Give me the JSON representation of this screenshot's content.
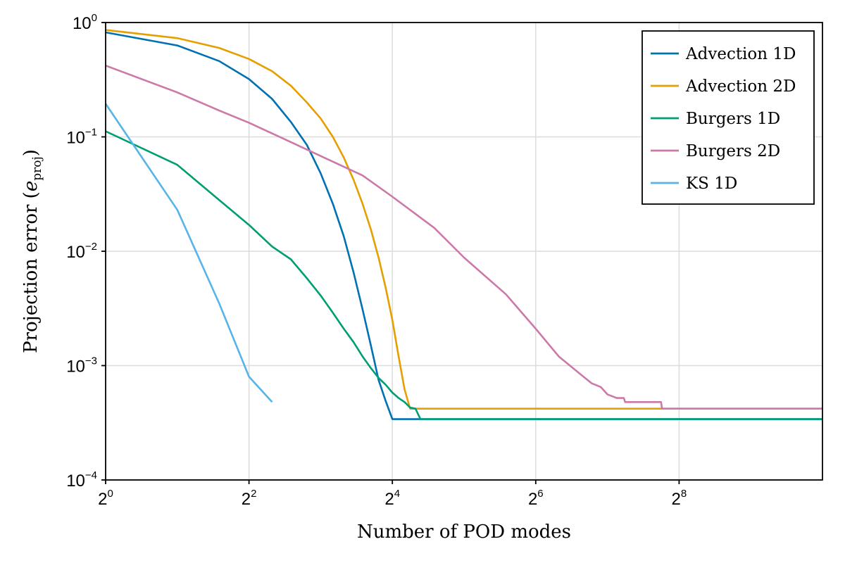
{
  "chart_data": {
    "type": "line",
    "xlabel": "Number of POD modes",
    "ylabel": {
      "main": "Projection error",
      "symbol": "e",
      "subscript": "proj"
    },
    "x_scale": "log2",
    "y_scale": "log10",
    "xlim": [
      1,
      1024
    ],
    "ylim": [
      0.0001,
      1
    ],
    "x_ticks": [
      {
        "value": 1,
        "base": "2",
        "exp": "0"
      },
      {
        "value": 4,
        "base": "2",
        "exp": "2"
      },
      {
        "value": 16,
        "base": "2",
        "exp": "4"
      },
      {
        "value": 64,
        "base": "2",
        "exp": "6"
      },
      {
        "value": 256,
        "base": "2",
        "exp": "8"
      }
    ],
    "y_ticks": [
      {
        "value": 1,
        "base": "10",
        "exp": "0"
      },
      {
        "value": 0.1,
        "base": "10",
        "exp": "−1"
      },
      {
        "value": 0.01,
        "base": "10",
        "exp": "−2"
      },
      {
        "value": 0.001,
        "base": "10",
        "exp": "−3"
      },
      {
        "value": 0.0001,
        "base": "10",
        "exp": "−4"
      }
    ],
    "grid": true,
    "legend_position": "top-right",
    "series": [
      {
        "name": "Advection 1D",
        "color": "#0072b2",
        "points": [
          [
            1,
            0.82
          ],
          [
            2,
            0.63
          ],
          [
            3,
            0.46
          ],
          [
            4,
            0.32
          ],
          [
            5,
            0.215
          ],
          [
            6,
            0.135
          ],
          [
            7,
            0.085
          ],
          [
            8,
            0.048
          ],
          [
            9,
            0.026
          ],
          [
            10,
            0.0135
          ],
          [
            11,
            0.0065
          ],
          [
            12,
            0.0031
          ],
          [
            13,
            0.0015
          ],
          [
            14,
            0.00075
          ],
          [
            15,
            0.00049
          ],
          [
            16,
            0.00034
          ],
          [
            1024,
            0.00034
          ]
        ]
      },
      {
        "name": "Advection 2D",
        "color": "#e69f00",
        "points": [
          [
            1,
            0.86
          ],
          [
            2,
            0.73
          ],
          [
            3,
            0.6
          ],
          [
            4,
            0.48
          ],
          [
            5,
            0.375
          ],
          [
            6,
            0.28
          ],
          [
            7,
            0.2
          ],
          [
            8,
            0.145
          ],
          [
            9,
            0.1
          ],
          [
            10,
            0.066
          ],
          [
            11,
            0.042
          ],
          [
            12,
            0.026
          ],
          [
            13,
            0.0155
          ],
          [
            14,
            0.0088
          ],
          [
            15,
            0.0048
          ],
          [
            16,
            0.0025
          ],
          [
            17,
            0.0012
          ],
          [
            18,
            0.00062
          ],
          [
            19,
            0.00042
          ],
          [
            1024,
            0.00042
          ]
        ]
      },
      {
        "name": "Burgers 1D",
        "color": "#009e73",
        "points": [
          [
            1,
            0.112
          ],
          [
            2,
            0.057
          ],
          [
            3,
            0.028
          ],
          [
            4,
            0.017
          ],
          [
            5,
            0.011
          ],
          [
            6,
            0.0085
          ],
          [
            7,
            0.0058
          ],
          [
            8,
            0.0041
          ],
          [
            9,
            0.0029
          ],
          [
            10,
            0.0021
          ],
          [
            11,
            0.0016
          ],
          [
            12,
            0.0012
          ],
          [
            13,
            0.00095
          ],
          [
            14,
            0.00078
          ],
          [
            15,
            0.00068
          ],
          [
            16,
            0.00058
          ],
          [
            17,
            0.00052
          ],
          [
            18,
            0.00048
          ],
          [
            19,
            0.00043
          ],
          [
            20,
            0.00042
          ],
          [
            21,
            0.00034
          ],
          [
            1024,
            0.00034
          ]
        ]
      },
      {
        "name": "Burgers 2D",
        "color": "#cc79a7",
        "points": [
          [
            1,
            0.42
          ],
          [
            2,
            0.245
          ],
          [
            3,
            0.17
          ],
          [
            4,
            0.133
          ],
          [
            6,
            0.09
          ],
          [
            8,
            0.068
          ],
          [
            12,
            0.046
          ],
          [
            16,
            0.03
          ],
          [
            24,
            0.016
          ],
          [
            32,
            0.0088
          ],
          [
            48,
            0.0042
          ],
          [
            64,
            0.0021
          ],
          [
            80,
            0.0012
          ],
          [
            96,
            0.00088
          ],
          [
            110,
            0.0007
          ],
          [
            120,
            0.00065
          ],
          [
            128,
            0.00056
          ],
          [
            140,
            0.00052
          ],
          [
            150,
            0.00052
          ],
          [
            152,
            0.00048
          ],
          [
            215,
            0.00048
          ],
          [
            217,
            0.00042
          ],
          [
            1024,
            0.00042
          ]
        ]
      },
      {
        "name": "KS 1D",
        "color": "#56b4e9",
        "points": [
          [
            1,
            0.195
          ],
          [
            2,
            0.023
          ],
          [
            3,
            0.0035
          ],
          [
            4,
            0.0008
          ],
          [
            5,
            0.00048
          ]
        ]
      }
    ]
  }
}
